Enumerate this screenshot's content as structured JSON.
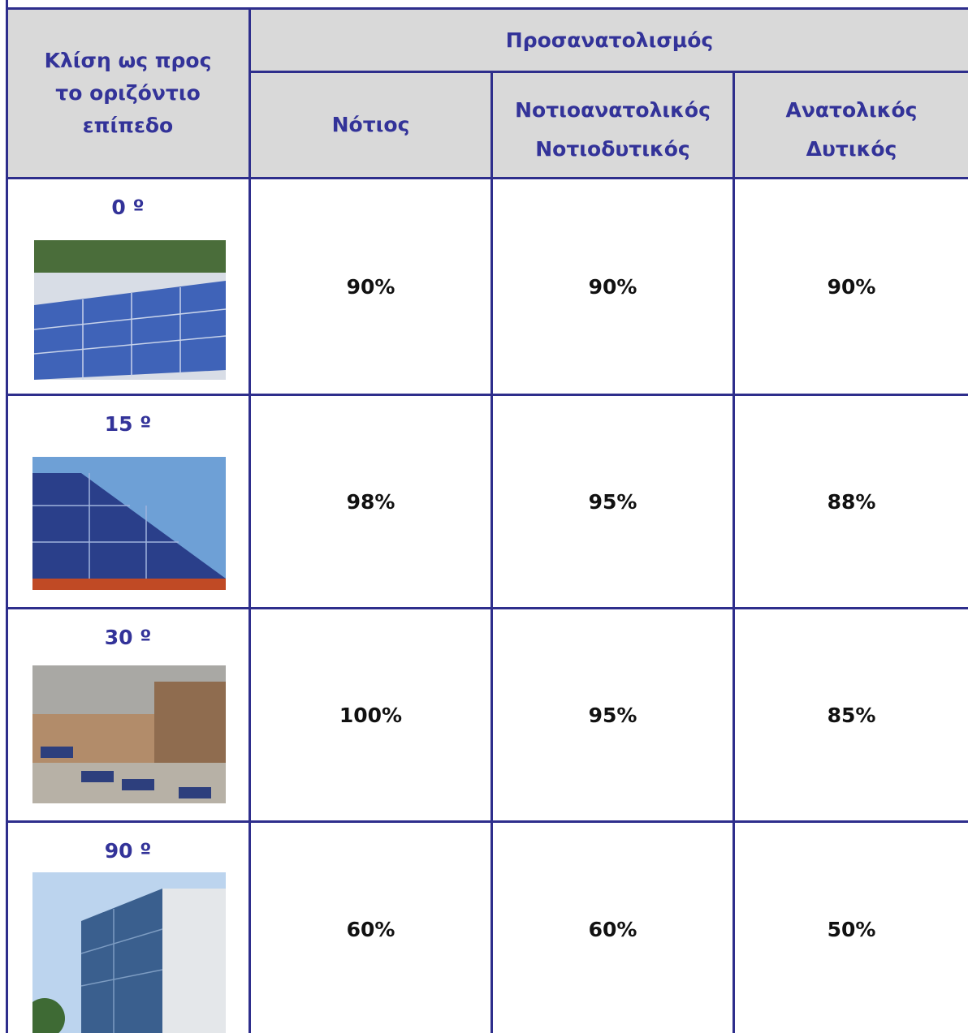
{
  "table": {
    "header": {
      "tilt": "Κλίση ως προς το οριζόντιο επίπεδο",
      "orientation": "Προσανατολισμός",
      "columns": [
        "Νότιος",
        "Νοτιοανατολικός Νοτιοδυτικός",
        "Ανατολικός Δυτικός"
      ]
    },
    "rows": [
      {
        "tilt": "0 º",
        "values": [
          "90%",
          "90%",
          "90%"
        ]
      },
      {
        "tilt": "15 º",
        "values": [
          "98%",
          "95%",
          "88%"
        ]
      },
      {
        "tilt": "30 º",
        "values": [
          "100%",
          "95%",
          "85%"
        ]
      },
      {
        "tilt": "90 º",
        "values": [
          "60%",
          "60%",
          "50%"
        ]
      }
    ]
  }
}
